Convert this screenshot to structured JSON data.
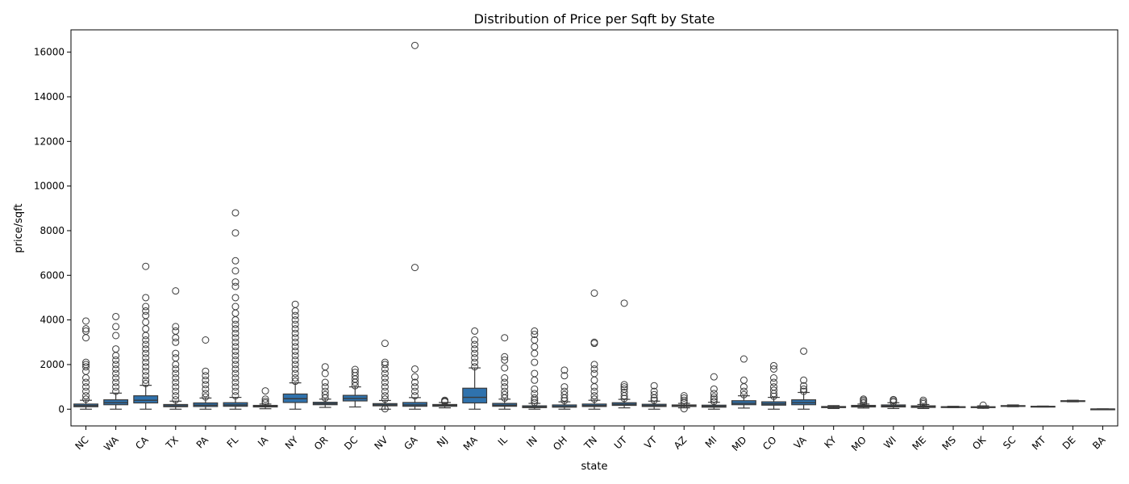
{
  "chart_data": {
    "type": "box",
    "title": "Distribution of Price per Sqft by State",
    "xlabel": "state",
    "ylabel": "price/sqft",
    "ylim": [
      -750,
      17000
    ],
    "yticks": [
      0,
      2000,
      4000,
      6000,
      8000,
      10000,
      12000,
      14000,
      16000
    ],
    "grid": false,
    "box_color": "#2f72ad",
    "categories": [
      "NC",
      "WA",
      "CA",
      "TX",
      "PA",
      "FL",
      "IA",
      "NY",
      "OR",
      "DC",
      "NV",
      "GA",
      "NJ",
      "MA",
      "IL",
      "IN",
      "OH",
      "TN",
      "UT",
      "VT",
      "AZ",
      "MI",
      "MD",
      "CO",
      "VA",
      "KY",
      "MO",
      "WI",
      "ME",
      "MS",
      "OK",
      "SC",
      "MT",
      "DE",
      "BA"
    ],
    "boxes": [
      {
        "state": "NC",
        "whislo": 0,
        "q1": 110,
        "med": 160,
        "q3": 230,
        "whishi": 400,
        "fliers": [
          450,
          600,
          800,
          1000,
          1200,
          1400,
          1700,
          1900,
          2000,
          2100,
          3200,
          3500,
          3600,
          3950
        ]
      },
      {
        "state": "WA",
        "whislo": 0,
        "q1": 200,
        "med": 290,
        "q3": 420,
        "whishi": 720,
        "fliers": [
          800,
          1000,
          1200,
          1400,
          1600,
          1800,
          2000,
          2200,
          2400,
          2700,
          3300,
          3700,
          4150
        ]
      },
      {
        "state": "CA",
        "whislo": 0,
        "q1": 280,
        "med": 400,
        "q3": 600,
        "whishi": 1070,
        "fliers": [
          1150,
          1300,
          1500,
          1700,
          1900,
          2100,
          2300,
          2500,
          2700,
          2900,
          3100,
          3300,
          3600,
          3900,
          4200,
          4400,
          4600,
          5000,
          6400
        ]
      },
      {
        "state": "TX",
        "whislo": 0,
        "q1": 110,
        "med": 150,
        "q3": 210,
        "whishi": 360,
        "fliers": [
          420,
          600,
          800,
          1000,
          1200,
          1400,
          1600,
          1800,
          2000,
          2300,
          2500,
          3000,
          3200,
          3500,
          3700,
          5300
        ]
      },
      {
        "state": "PA",
        "whislo": 0,
        "q1": 120,
        "med": 180,
        "q3": 280,
        "whishi": 500,
        "fliers": [
          550,
          700,
          900,
          1100,
          1300,
          1500,
          1700,
          3100
        ]
      },
      {
        "state": "FL",
        "whislo": 0,
        "q1": 130,
        "med": 190,
        "q3": 290,
        "whishi": 530,
        "fliers": [
          600,
          800,
          1000,
          1200,
          1400,
          1600,
          1800,
          2000,
          2200,
          2400,
          2600,
          2800,
          3000,
          3200,
          3400,
          3600,
          3800,
          4000,
          4300,
          4600,
          5000,
          5500,
          5700,
          6200,
          6650,
          7900,
          8800
        ]
      },
      {
        "state": "IA",
        "whislo": 20,
        "q1": 100,
        "med": 130,
        "q3": 170,
        "whishi": 230,
        "fliers": [
          280,
          350,
          450,
          820
        ]
      },
      {
        "state": "NY",
        "whislo": 0,
        "q1": 300,
        "med": 470,
        "q3": 680,
        "whishi": 1180,
        "fliers": [
          1250,
          1400,
          1600,
          1800,
          2000,
          2200,
          2400,
          2600,
          2800,
          3000,
          3200,
          3400,
          3600,
          3800,
          4000,
          4200,
          4400,
          4700
        ]
      },
      {
        "state": "OR",
        "whislo": 80,
        "q1": 200,
        "med": 250,
        "q3": 310,
        "whishi": 450,
        "fliers": [
          500,
          650,
          800,
          1000,
          1200,
          1600,
          1900
        ]
      },
      {
        "state": "DC",
        "whislo": 100,
        "q1": 370,
        "med": 480,
        "q3": 620,
        "whishi": 1000,
        "fliers": [
          1050,
          1200,
          1350,
          1500,
          1650,
          1780
        ]
      },
      {
        "state": "NV",
        "whislo": 0,
        "q1": 150,
        "med": 190,
        "q3": 250,
        "whishi": 390,
        "fliers": [
          20,
          450,
          600,
          800,
          1000,
          1200,
          1400,
          1600,
          1800,
          2000,
          2100,
          2950
        ]
      },
      {
        "state": "GA",
        "whislo": 0,
        "q1": 130,
        "med": 190,
        "q3": 300,
        "whishi": 520,
        "fliers": [
          600,
          800,
          1000,
          1200,
          1450,
          1800,
          6350,
          16300
        ]
      },
      {
        "state": "NJ",
        "whislo": 60,
        "q1": 130,
        "med": 170,
        "q3": 210,
        "whishi": 300,
        "fliers": [
          330,
          360,
          400
        ]
      },
      {
        "state": "MA",
        "whislo": 0,
        "q1": 280,
        "med": 530,
        "q3": 940,
        "whishi": 1850,
        "fliers": [
          1900,
          2100,
          2300,
          2500,
          2700,
          2900,
          3100,
          3500
        ]
      },
      {
        "state": "IL",
        "whislo": 0,
        "q1": 130,
        "med": 180,
        "q3": 260,
        "whishi": 450,
        "fliers": [
          500,
          650,
          800,
          1000,
          1200,
          1400,
          1850,
          2200,
          2350,
          3200
        ]
      },
      {
        "state": "IN",
        "whislo": 0,
        "q1": 70,
        "med": 100,
        "q3": 150,
        "whishi": 260,
        "fliers": [
          300,
          400,
          500,
          700,
          900,
          1300,
          1600,
          2100,
          2500,
          2800,
          3100,
          3350,
          3500
        ]
      },
      {
        "state": "OH",
        "whislo": 0,
        "q1": 90,
        "med": 120,
        "q3": 190,
        "whishi": 330,
        "fliers": [
          380,
          500,
          650,
          800,
          1000,
          1500,
          1750
        ]
      },
      {
        "state": "TN",
        "whislo": 0,
        "q1": 120,
        "med": 160,
        "q3": 230,
        "whishi": 400,
        "fliers": [
          450,
          600,
          800,
          1000,
          1300,
          1600,
          1800,
          2000,
          2950,
          3000,
          5200
        ]
      },
      {
        "state": "UT",
        "whislo": 60,
        "q1": 170,
        "med": 220,
        "q3": 290,
        "whishi": 440,
        "fliers": [
          480,
          600,
          750,
          900,
          1000,
          1100,
          4750
        ]
      },
      {
        "state": "VT",
        "whislo": 0,
        "q1": 120,
        "med": 160,
        "q3": 220,
        "whishi": 360,
        "fliers": [
          400,
          500,
          650,
          800,
          1050
        ]
      },
      {
        "state": "AZ",
        "whislo": 60,
        "q1": 120,
        "med": 150,
        "q3": 190,
        "whishi": 260,
        "fliers": [
          20,
          300,
          400,
          500,
          600
        ]
      },
      {
        "state": "MI",
        "whislo": 0,
        "q1": 90,
        "med": 130,
        "q3": 180,
        "whishi": 310,
        "fliers": [
          350,
          450,
          550,
          700,
          900,
          1450
        ]
      },
      {
        "state": "MD",
        "whislo": 50,
        "q1": 200,
        "med": 260,
        "q3": 380,
        "whishi": 600,
        "fliers": [
          650,
          800,
          1000,
          1300,
          2250
        ]
      },
      {
        "state": "CO",
        "whislo": 0,
        "q1": 180,
        "med": 240,
        "q3": 330,
        "whishi": 530,
        "fliers": [
          580,
          700,
          850,
          1000,
          1200,
          1400,
          1800,
          1950
        ]
      },
      {
        "state": "VA",
        "whislo": 0,
        "q1": 200,
        "med": 290,
        "q3": 420,
        "whishi": 750,
        "fliers": [
          800,
          900,
          1050,
          1300,
          2600
        ]
      },
      {
        "state": "KY",
        "whislo": 30,
        "q1": 70,
        "med": 90,
        "q3": 120,
        "whishi": 160,
        "fliers": []
      },
      {
        "state": "MO",
        "whislo": 50,
        "q1": 100,
        "med": 130,
        "q3": 170,
        "whishi": 230,
        "fliers": [
          270,
          330,
          400,
          450
        ]
      },
      {
        "state": "WI",
        "whislo": 30,
        "q1": 100,
        "med": 140,
        "q3": 190,
        "whishi": 290,
        "fliers": [
          320,
          380,
          430
        ]
      },
      {
        "state": "ME",
        "whislo": 30,
        "q1": 80,
        "med": 110,
        "q3": 150,
        "whishi": 210,
        "fliers": [
          250,
          320,
          400
        ]
      },
      {
        "state": "MS",
        "whislo": 70,
        "q1": 90,
        "med": 100,
        "q3": 110,
        "whishi": 130,
        "fliers": []
      },
      {
        "state": "OK",
        "whislo": 40,
        "q1": 70,
        "med": 90,
        "q3": 110,
        "whishi": 150,
        "fliers": [
          180
        ]
      },
      {
        "state": "SC",
        "whislo": 110,
        "q1": 130,
        "med": 145,
        "q3": 160,
        "whishi": 190,
        "fliers": []
      },
      {
        "state": "MT",
        "whislo": 100,
        "q1": 110,
        "med": 120,
        "q3": 130,
        "whishi": 140,
        "fliers": []
      },
      {
        "state": "DE",
        "whislo": 330,
        "q1": 350,
        "med": 365,
        "q3": 380,
        "whishi": 400,
        "fliers": []
      },
      {
        "state": "BA",
        "whislo": 0,
        "q1": 0,
        "med": 5,
        "q3": 10,
        "whishi": 15,
        "fliers": []
      }
    ]
  }
}
